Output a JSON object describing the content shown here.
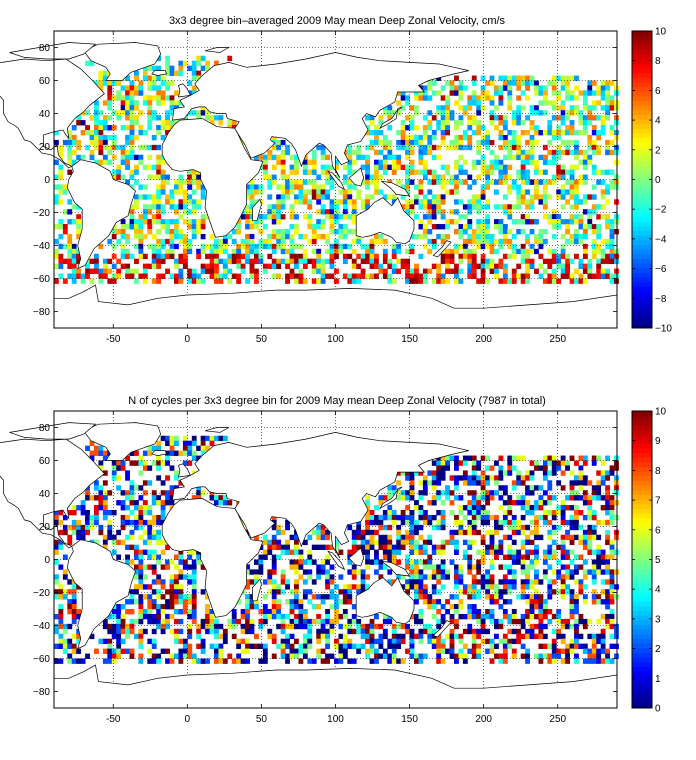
{
  "chart_data": [
    {
      "type": "heatmap",
      "title": "3x3 degree bin–averaged 2009 May mean Deep Zonal Velocity, cm/s",
      "xlim": [
        -90,
        290
      ],
      "ylim": [
        -90,
        90
      ],
      "x_ticks": [
        "-50",
        "0",
        "50",
        "100",
        "150",
        "200",
        "250"
      ],
      "y_ticks": [
        "80",
        "60",
        "40",
        "20",
        "0",
        "−20",
        "−40",
        "−60",
        "−80"
      ],
      "colorbar": {
        "min": -10,
        "max": 10,
        "ticks": [
          "10",
          "8",
          "6",
          "4",
          "2",
          "0",
          "−2",
          "−4",
          "−6",
          "−8",
          "−10"
        ]
      },
      "grid": true,
      "bin_size_deg": 3
    },
    {
      "type": "heatmap",
      "title": "N of cycles per 3x3 degree bin for 2009 May mean Deep Zonal Velocity (7987 in total)",
      "xlim": [
        -90,
        290
      ],
      "ylim": [
        -90,
        90
      ],
      "x_ticks": [
        "-50",
        "0",
        "50",
        "100",
        "150",
        "200",
        "250"
      ],
      "y_ticks": [
        "80",
        "60",
        "40",
        "20",
        "0",
        "−20",
        "−40",
        "−60",
        "−80"
      ],
      "colorbar": {
        "min": 0,
        "max": 10,
        "ticks": [
          "10",
          "9",
          "8",
          "7",
          "6",
          "5",
          "4",
          "3",
          "2",
          "1",
          "0"
        ]
      },
      "grid": true,
      "bin_size_deg": 3
    }
  ]
}
